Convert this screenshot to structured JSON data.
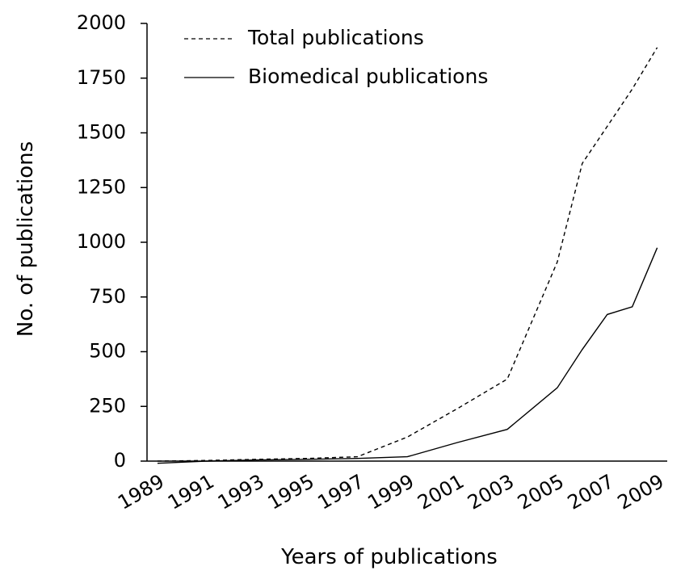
{
  "chart_data": {
    "type": "line",
    "title": "",
    "xlabel": "Years of publications",
    "ylabel": "No. of publications",
    "x": [
      1989,
      1991,
      1993,
      1995,
      1997,
      1999,
      2001,
      2003,
      2005,
      2006,
      2007,
      2008,
      2009
    ],
    "x_tick_labels": [
      "1989",
      "1991",
      "1993",
      "1995",
      "1997",
      "1999",
      "2001",
      "2003",
      "2005",
      "2007",
      "2009"
    ],
    "y_tick_labels": [
      "0",
      "250",
      "500",
      "750",
      "1000",
      "1250",
      "1500",
      "1750",
      "2000"
    ],
    "ylim": [
      0,
      2000
    ],
    "legend_position": "top-left",
    "grid": false,
    "series": [
      {
        "name": "Total publications",
        "style": "dashed",
        "color": "#000000",
        "points": [
          [
            1989,
            0
          ],
          [
            1991,
            3
          ],
          [
            1993,
            8
          ],
          [
            1995,
            12
          ],
          [
            1997,
            20
          ],
          [
            1999,
            110
          ],
          [
            2001,
            240
          ],
          [
            2003,
            375
          ],
          [
            2005,
            910
          ],
          [
            2006,
            1360
          ],
          [
            2007,
            1530
          ],
          [
            2008,
            1700
          ],
          [
            2009,
            1890
          ]
        ]
      },
      {
        "name": "Biomedical publications",
        "style": "solid",
        "color": "#000000",
        "points": [
          [
            1989,
            -10
          ],
          [
            1991,
            0
          ],
          [
            1993,
            5
          ],
          [
            1995,
            8
          ],
          [
            1997,
            12
          ],
          [
            1999,
            20
          ],
          [
            2001,
            85
          ],
          [
            2003,
            145
          ],
          [
            2005,
            335
          ],
          [
            2006,
            510
          ],
          [
            2007,
            670
          ],
          [
            2008,
            705
          ],
          [
            2009,
            975
          ]
        ]
      }
    ]
  }
}
